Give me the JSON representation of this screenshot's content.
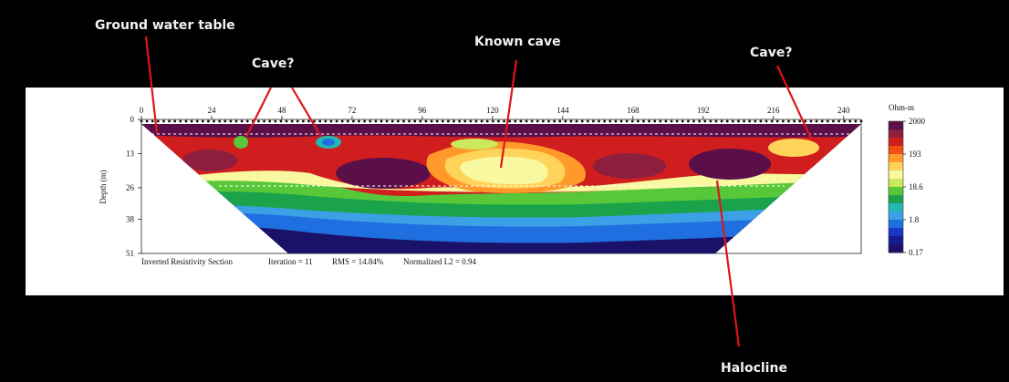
{
  "annotations": {
    "ground_water_table": "Ground water table",
    "cave_left": "Cave?",
    "known_cave": "Known cave",
    "cave_right": "Cave?",
    "halocline": "Halocline"
  },
  "colors": {
    "background": "#000000",
    "panel": "#ffffff",
    "annotation_line": "#e0151b"
  },
  "chart_data": {
    "type": "heatmap",
    "title": "Inverted Resistivity Section",
    "xlabel": "",
    "ylabel": "Depth (m)",
    "x_ticks": [
      0,
      24,
      48,
      72,
      96,
      120,
      144,
      168,
      192,
      216,
      240
    ],
    "y_ticks": [
      0,
      13,
      26,
      38,
      51
    ],
    "xlim": [
      0,
      246
    ],
    "ylim": [
      0,
      51
    ],
    "colorbar": {
      "unit": "Ohm-m",
      "labels": [
        "2000",
        "193",
        "18.6",
        "1.8",
        "0.17"
      ],
      "colors": [
        "#5a0f49",
        "#8e1e3d",
        "#d01e1e",
        "#f24f14",
        "#ff9a2a",
        "#ffd35a",
        "#f8f8a0",
        "#cce85c",
        "#58c83a",
        "#1aa34a",
        "#24b8b0",
        "#3ca0e6",
        "#1f6fe0",
        "#1a35c8",
        "#141d8e",
        "#1a1268"
      ]
    },
    "footer": {
      "section_label": "Inverted Resistivity Section",
      "iteration": "Iteration = 11",
      "rms": "RMS = 14.84%",
      "normalized_l2": "Normalized L2 = 0.94"
    },
    "grid": false
  }
}
